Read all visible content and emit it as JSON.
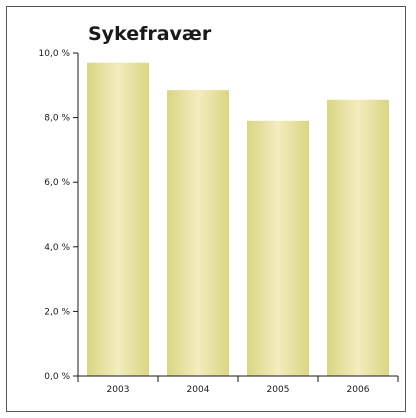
{
  "chart_data": {
    "type": "bar",
    "title": "Sykefravær",
    "categories": [
      "2003",
      "2004",
      "2005",
      "2006"
    ],
    "values": [
      9.7,
      8.85,
      7.9,
      8.55
    ],
    "ylim": [
      0,
      10
    ],
    "yticks": [
      0,
      2,
      4,
      6,
      8,
      10
    ],
    "ytick_labels": [
      "0,0 %",
      "2,0 %",
      "4,0 %",
      "6,0 %",
      "8,0 %",
      "10,0 %"
    ],
    "xlabel": "",
    "ylabel": "",
    "grid": false,
    "bar_color": "#d9d683",
    "bar_highlight": "#f3ecbf"
  }
}
